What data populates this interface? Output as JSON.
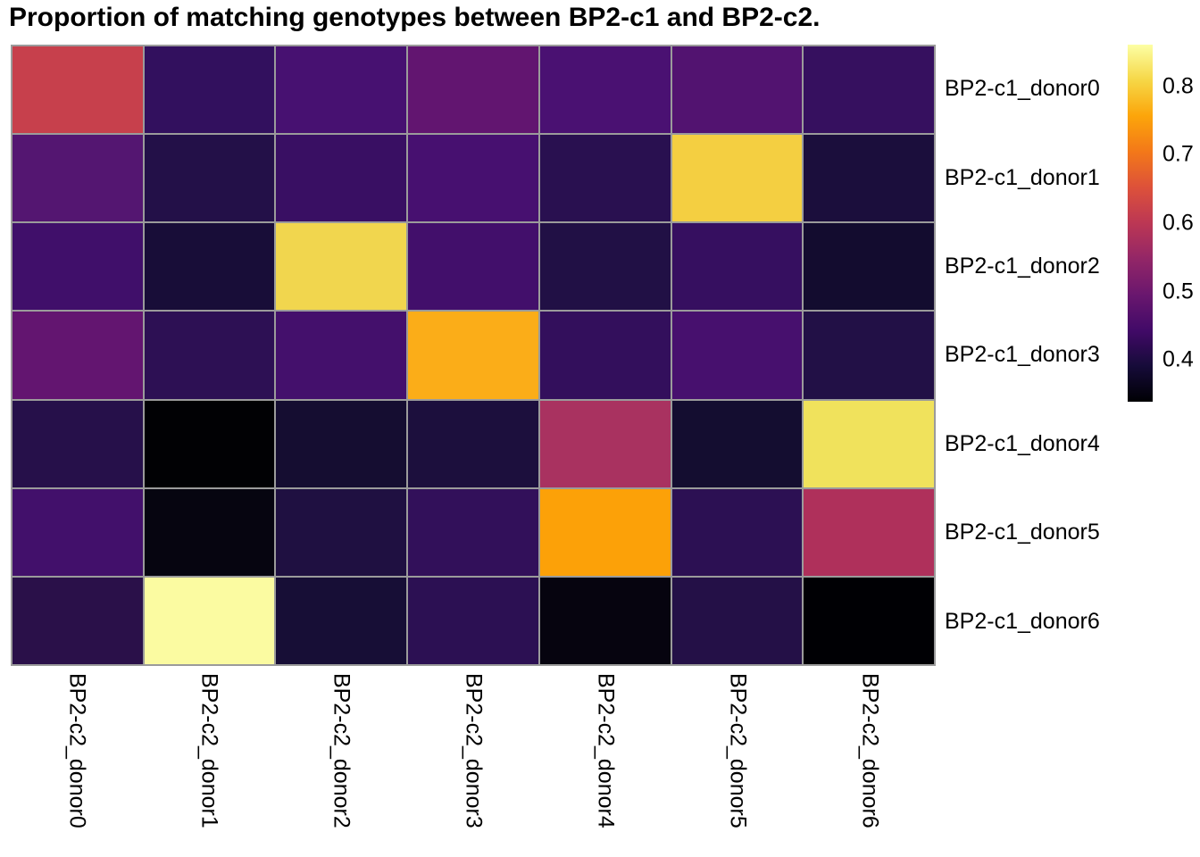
{
  "title": "Proportion of matching genotypes between BP2-c1 and BP2-c2.",
  "chart_data": {
    "type": "heatmap",
    "title": "Proportion of matching genotypes between BP2-c1 and BP2-c2.",
    "rows": [
      "BP2-c1_donor0",
      "BP2-c1_donor1",
      "BP2-c1_donor2",
      "BP2-c1_donor3",
      "BP2-c1_donor4",
      "BP2-c1_donor5",
      "BP2-c1_donor6"
    ],
    "columns": [
      "BP2-c2_donor0",
      "BP2-c2_donor1",
      "BP2-c2_donor2",
      "BP2-c2_donor3",
      "BP2-c2_donor4",
      "BP2-c2_donor5",
      "BP2-c2_donor6"
    ],
    "values": [
      [
        0.62,
        0.43,
        0.45,
        0.49,
        0.46,
        0.47,
        0.43
      ],
      [
        0.47,
        0.41,
        0.44,
        0.45,
        0.42,
        0.8,
        0.4
      ],
      [
        0.44,
        0.39,
        0.81,
        0.45,
        0.41,
        0.43,
        0.38
      ],
      [
        0.49,
        0.42,
        0.45,
        0.77,
        0.43,
        0.45,
        0.41
      ],
      [
        0.42,
        0.34,
        0.39,
        0.4,
        0.57,
        0.39,
        0.83
      ],
      [
        0.45,
        0.36,
        0.4,
        0.43,
        0.75,
        0.42,
        0.58
      ],
      [
        0.42,
        0.86,
        0.39,
        0.42,
        0.35,
        0.41,
        0.34
      ]
    ],
    "cell_colors": [
      [
        "#c7404c",
        "#32105e",
        "#471171",
        "#621570",
        "#4a1172",
        "#521370",
        "#36105f"
      ],
      [
        "#541671",
        "#231048",
        "#390f63",
        "#471070",
        "#291050",
        "#f4cf41",
        "#1b0e3c"
      ],
      [
        "#400f6a",
        "#180d38",
        "#f1d64e",
        "#420f6b",
        "#211045",
        "#360f60",
        "#130c2f"
      ],
      [
        "#631570",
        "#2d1054",
        "#44106c",
        "#fbad18",
        "#330f5c",
        "#47106e",
        "#221046"
      ],
      [
        "#26104a",
        "#010104",
        "#150d31",
        "#1c0f3d",
        "#a93260",
        "#140d30",
        "#f0e25c"
      ],
      [
        "#42106b",
        "#060510",
        "#1f1041",
        "#32105a",
        "#fca108",
        "#2c1053",
        "#af305b"
      ],
      [
        "#2a1049",
        "#fbfba1",
        "#170e36",
        "#2c1053",
        "#06040f",
        "#241047",
        "#000004"
      ]
    ],
    "value_range_estimated": [
      0.34,
      0.86
    ],
    "grid": true,
    "legend_position": "right"
  },
  "colorbar": {
    "tick_labels": [
      "0.8",
      "0.7",
      "0.6",
      "0.5",
      "0.4"
    ],
    "tick_values": [
      0.8,
      0.7,
      0.6,
      0.5,
      0.4
    ],
    "domain": [
      0.339,
      0.861
    ],
    "colormap": "inferno",
    "gradient_top_to_bottom": [
      "#fcffa4",
      "#f6d746",
      "#fca50a",
      "#f37819",
      "#dd513a",
      "#bc3754",
      "#932667",
      "#6a176e",
      "#420a68",
      "#160b39",
      "#000004"
    ]
  },
  "style": {
    "grid_line_color": "#9b9b9b",
    "background_color": "#ffffff",
    "text_color": "#000000"
  }
}
